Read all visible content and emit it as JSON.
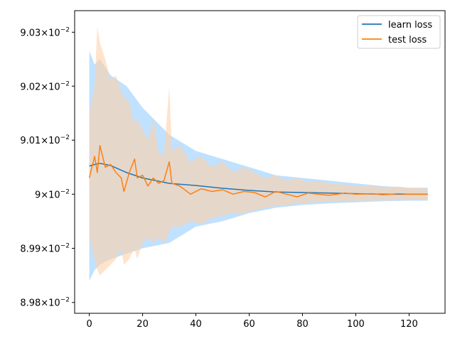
{
  "chart_data": {
    "type": "line",
    "title": "",
    "xlabel": "",
    "ylabel": "",
    "yscale": "log",
    "xlim": [
      -5.5,
      133.5
    ],
    "ylim": [
      0.08978,
      0.09034
    ],
    "x_ticks": [
      0,
      20,
      40,
      60,
      80,
      100,
      120
    ],
    "x_tick_labels": [
      "0",
      "20",
      "40",
      "60",
      "80",
      "100",
      "120"
    ],
    "y_ticks": [
      0.0898,
      0.0899,
      0.09,
      0.0901,
      0.0902,
      0.0903
    ],
    "y_tick_labels": [
      {
        "mant": "8.98",
        "base": "10",
        "exp": "−2"
      },
      {
        "mant": "8.99",
        "base": "10",
        "exp": "−2"
      },
      {
        "mant": "9",
        "base": "10",
        "exp": "−2"
      },
      {
        "mant": "9.01",
        "base": "10",
        "exp": "−2"
      },
      {
        "mant": "9.02",
        "base": "10",
        "exp": "−2"
      },
      {
        "mant": "9.03",
        "base": "10",
        "exp": "−2"
      }
    ],
    "grid": false,
    "legend": "top-right",
    "series": [
      {
        "name": "learn loss",
        "color": "#1f77b4",
        "band_color": "#8cc8ff",
        "x": [
          0,
          2,
          4,
          8,
          14,
          20,
          30,
          40,
          50,
          60,
          70,
          80,
          90,
          100,
          110,
          120,
          127
        ],
        "y": [
          0.090052,
          0.090055,
          0.090057,
          0.090053,
          0.09004,
          0.09003,
          0.09002,
          0.090016,
          0.090011,
          0.090007,
          0.090004,
          0.090003,
          0.090002,
          0.090001,
          0.09,
          0.09,
          0.09
        ],
        "upper": [
          0.090265,
          0.09024,
          0.09025,
          0.09022,
          0.0902,
          0.09016,
          0.09011,
          0.09008,
          0.090065,
          0.09005,
          0.090035,
          0.09003,
          0.090025,
          0.09002,
          0.090015,
          0.090012,
          0.090012
        ],
        "lower": [
          0.08984,
          0.08986,
          0.08987,
          0.08988,
          0.08989,
          0.0899,
          0.08991,
          0.08994,
          0.08995,
          0.089965,
          0.089975,
          0.08998,
          0.089983,
          0.089985,
          0.089987,
          0.089988,
          0.089988
        ]
      },
      {
        "name": "test loss",
        "color": "#ff7f0e",
        "band_color": "#ffd0a8",
        "x": [
          0,
          2,
          3,
          4,
          6,
          8,
          10,
          12,
          13,
          15,
          17,
          18,
          20,
          22,
          24,
          26,
          28,
          30,
          31,
          34,
          38,
          42,
          46,
          50,
          54,
          58,
          62,
          66,
          70,
          74,
          78,
          82,
          86,
          90,
          96,
          100,
          106,
          110,
          116,
          120,
          127
        ],
        "y": [
          0.09003,
          0.09007,
          0.09004,
          0.09009,
          0.09005,
          0.090055,
          0.09004,
          0.09003,
          0.090005,
          0.09004,
          0.090065,
          0.09003,
          0.090035,
          0.090015,
          0.09003,
          0.09002,
          0.090025,
          0.09006,
          0.09002,
          0.090015,
          0.09,
          0.09001,
          0.090005,
          0.090008,
          0.09,
          0.090005,
          0.090003,
          0.089995,
          0.090005,
          0.09,
          0.089995,
          0.090002,
          0.09,
          0.089998,
          0.090002,
          0.09,
          0.090001,
          0.089999,
          0.090001,
          0.09,
          0.09
        ],
        "upper": [
          0.09015,
          0.0902,
          0.09031,
          0.09028,
          0.09025,
          0.09021,
          0.09022,
          0.09019,
          0.09018,
          0.09017,
          0.09013,
          0.09014,
          0.09012,
          0.0901,
          0.09014,
          0.09008,
          0.09007,
          0.0902,
          0.09008,
          0.09009,
          0.09006,
          0.09007,
          0.09005,
          0.09006,
          0.09004,
          0.09005,
          0.09004,
          0.09003,
          0.090035,
          0.090025,
          0.09003,
          0.090022,
          0.090025,
          0.09002,
          0.090018,
          0.090015,
          0.090016,
          0.090013,
          0.090014,
          0.090012,
          0.09001
        ],
        "lower": [
          0.08992,
          0.08988,
          0.08986,
          0.08985,
          0.08986,
          0.08987,
          0.08988,
          0.0899,
          0.08987,
          0.08988,
          0.0899,
          0.08988,
          0.08991,
          0.08992,
          0.08991,
          0.08992,
          0.08991,
          0.08993,
          0.08994,
          0.08994,
          0.08995,
          0.089945,
          0.089955,
          0.08996,
          0.089965,
          0.089965,
          0.08997,
          0.089975,
          0.089978,
          0.08998,
          0.089982,
          0.089984,
          0.089985,
          0.089986,
          0.089987,
          0.089988,
          0.089988,
          0.089989,
          0.089989,
          0.08999,
          0.08999
        ]
      }
    ]
  }
}
